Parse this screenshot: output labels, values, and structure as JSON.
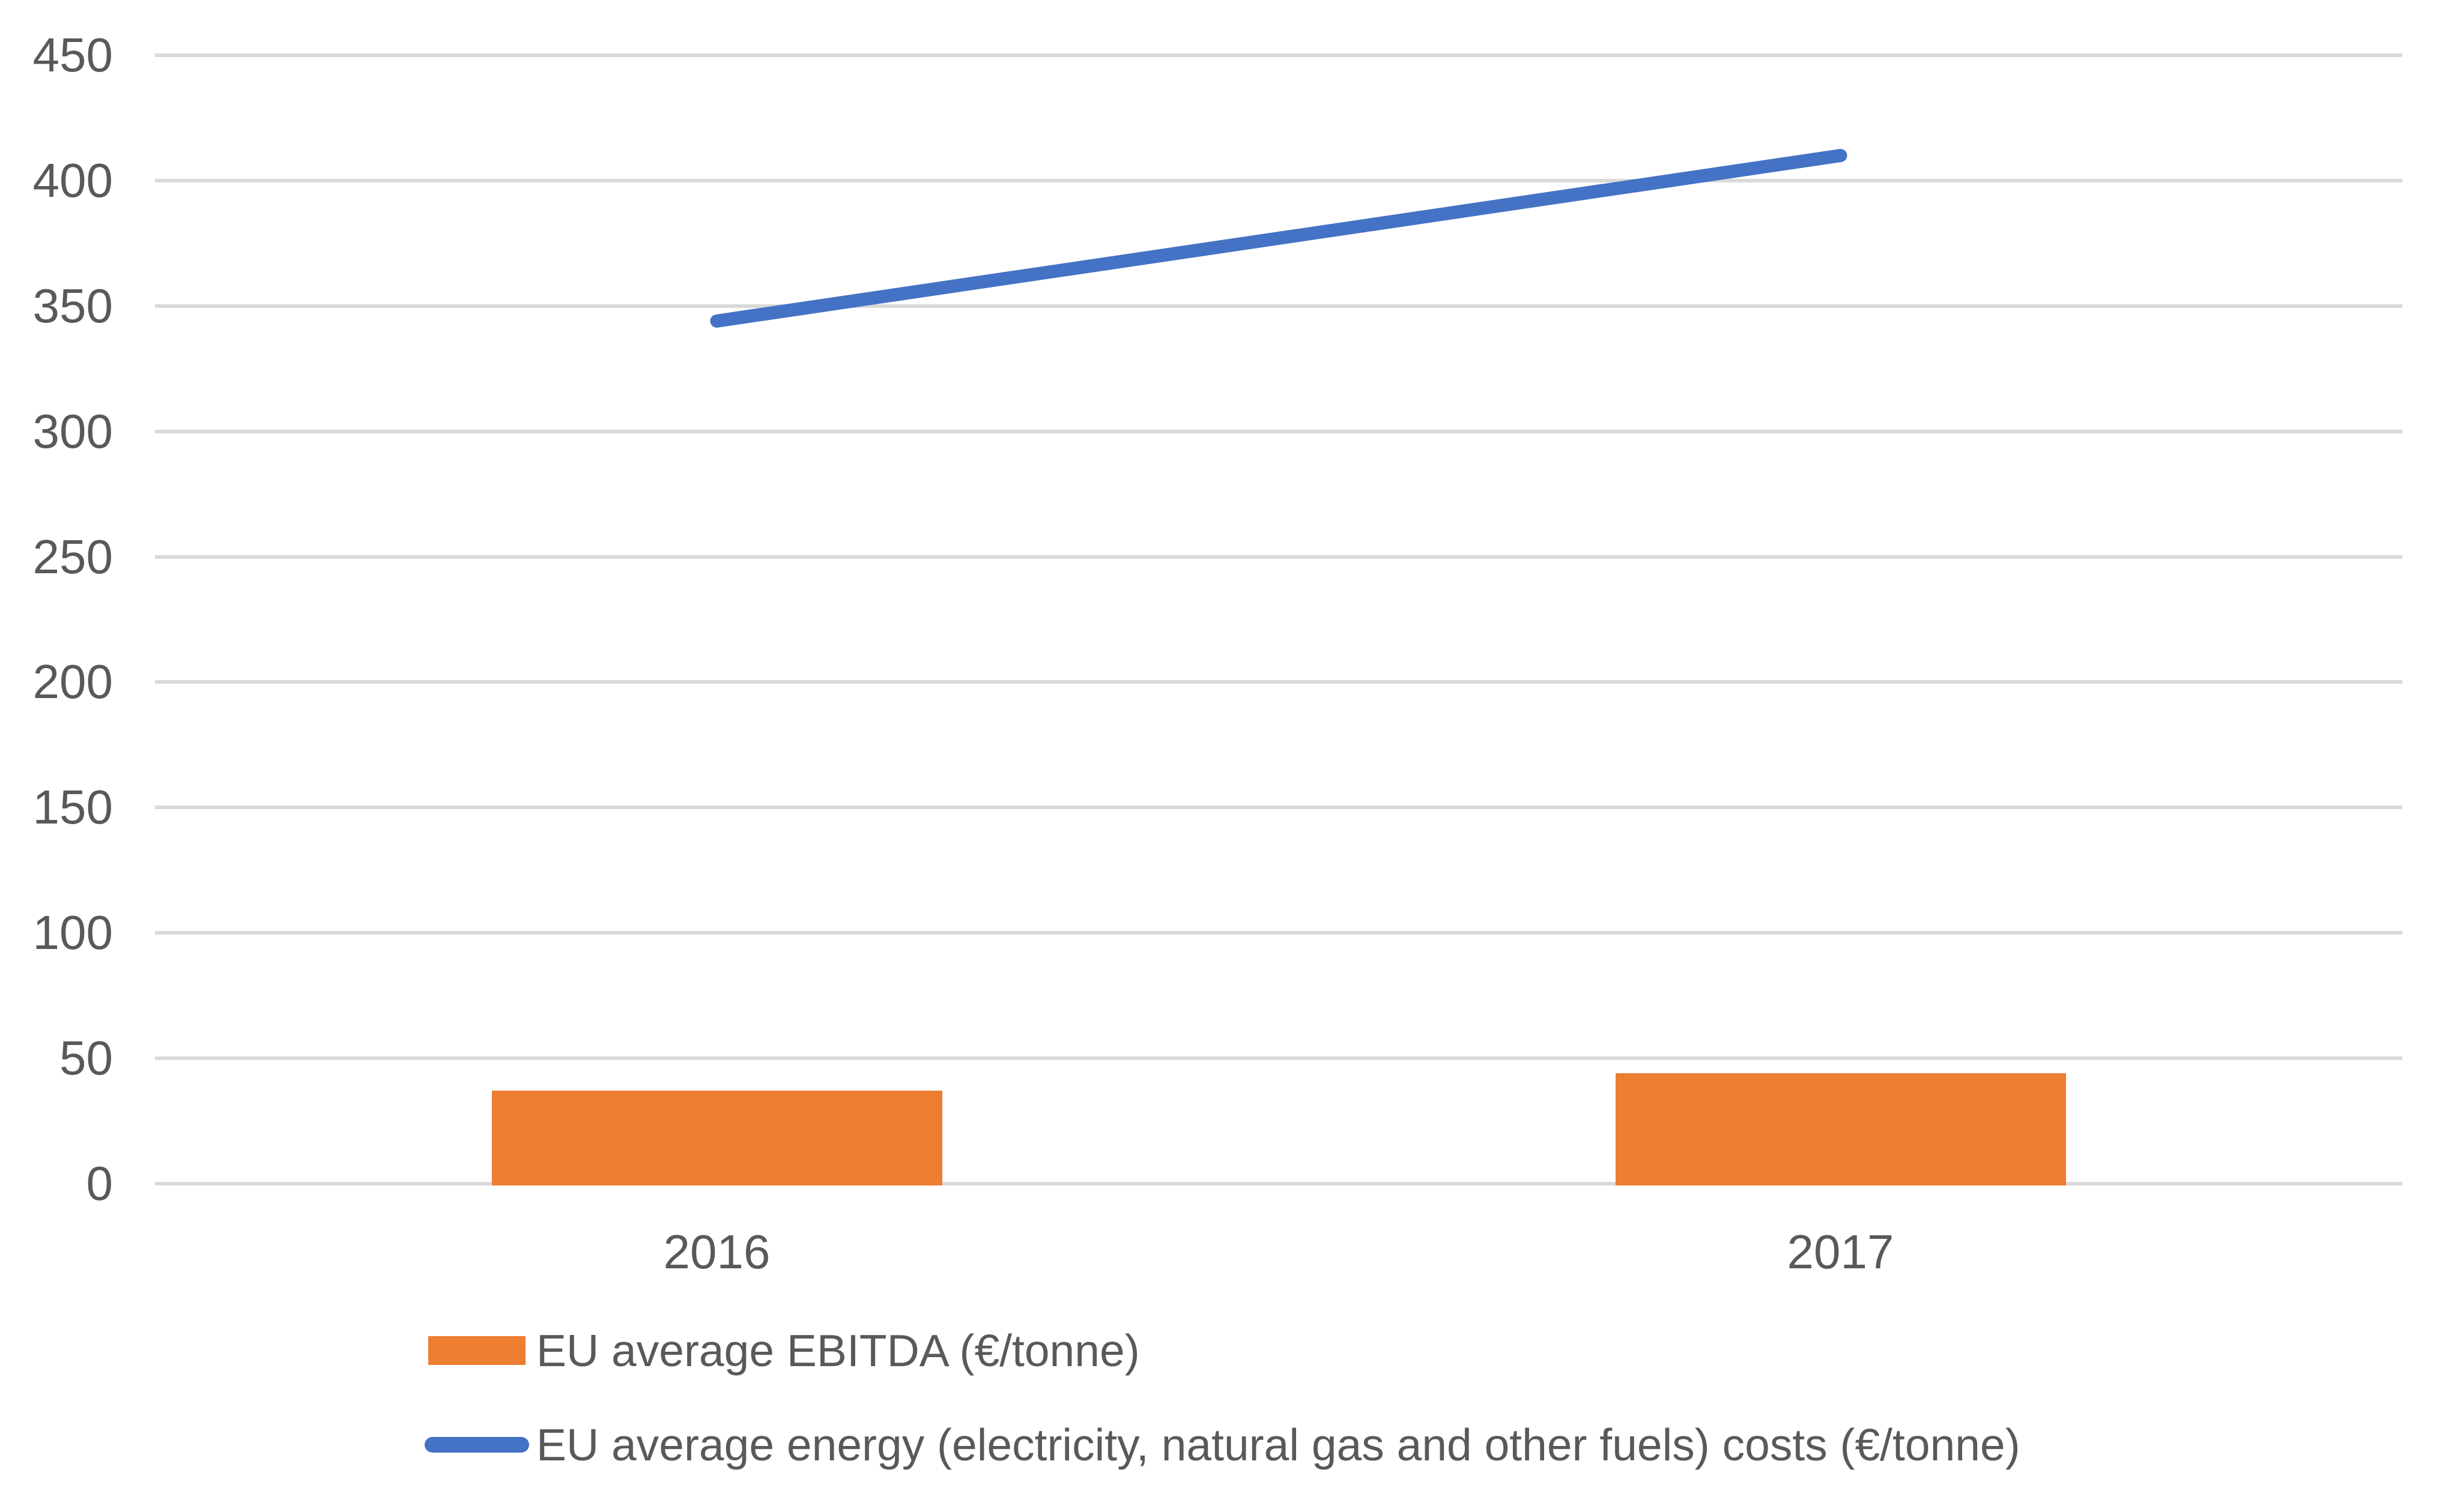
{
  "chart_data": {
    "type": "bar",
    "subtype": "bar-line-combo",
    "categories": [
      "2016",
      "2017"
    ],
    "series": [
      {
        "name": "EU average EBITDA (€/tonne)",
        "type": "bar",
        "color": "#ED7D31",
        "values": [
          37,
          44
        ]
      },
      {
        "name": "EU average energy (electricity, natural gas and other fuels) costs (€/tonne)",
        "type": "line",
        "color": "#4472C4",
        "values": [
          344,
          410
        ]
      }
    ],
    "title": "",
    "xlabel": "",
    "ylabel": "",
    "ylim": [
      0,
      450
    ],
    "yticks": [
      0,
      50,
      100,
      150,
      200,
      250,
      300,
      350,
      400,
      450
    ],
    "grid": "horizontal",
    "gridline_color": "#D9D9D9",
    "axis_text_color": "#595959",
    "legend_position": "bottom-left"
  }
}
